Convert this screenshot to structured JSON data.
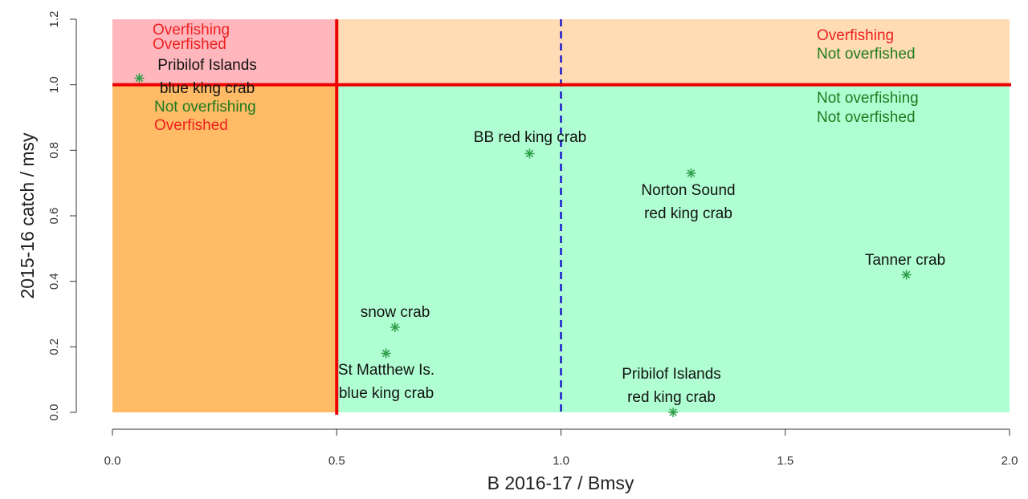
{
  "chart_data": {
    "type": "scatter",
    "xlabel": "B 2016-17  / Bmsy",
    "ylabel": "2015-16 catch / msy",
    "xlim": [
      0,
      2
    ],
    "ylim": [
      0,
      1.2
    ],
    "xticks": [
      {
        "value": 0,
        "label": "0.0"
      },
      0.5,
      {
        "value": 1,
        "label": "1.0"
      },
      1.5,
      {
        "value": 2,
        "label": "2.0"
      }
    ],
    "yticks": [
      {
        "value": 0,
        "label": "0.0"
      },
      0.2,
      0.4,
      0.6,
      0.8,
      {
        "value": 1,
        "label": "1.0"
      },
      1.2
    ],
    "x": [
      0.06,
      0.93,
      1.29,
      1.77,
      0.63,
      0.61,
      1.25
    ],
    "values": [
      1.02,
      0.79,
      0.73,
      0.42,
      0.26,
      0.18,
      0.0
    ],
    "labels": [
      [
        "Pribilof Islands",
        "blue king crab"
      ],
      [
        "BB red king crab"
      ],
      [
        "Norton Sound",
        "red king crab"
      ],
      [
        "Tanner crab"
      ],
      [
        "snow crab"
      ],
      [
        "St Matthew Is.",
        "blue king crab"
      ],
      [
        "Pribilof Islands",
        "red king crab"
      ]
    ],
    "color": "#2e9e4a",
    "region_colors": {
      "top_left": "#ffb7bd",
      "top_right": "#ffdcb4",
      "bottom_left": "#ffbb66",
      "bottom_right": "#b0ffd2"
    },
    "vlines": [
      {
        "value": 0.5,
        "color": "#ee0000",
        "style": "solid"
      },
      {
        "value": 1.0,
        "color": "#1a1acc",
        "style": "dashed"
      }
    ],
    "hlines": [
      {
        "value": 1.0,
        "color": "#ee0000",
        "style": "solid"
      }
    ],
    "annotations": [
      {
        "text": "Overfishing",
        "color": "#ee2020"
      },
      {
        "text": "Overfished",
        "color": "#ee2020"
      },
      {
        "text": "Not overfishing",
        "color": "#1e7a1e"
      },
      {
        "text": "Overfished",
        "color": "#ee2020"
      },
      {
        "text": "Overfishing",
        "color": "#ee2020"
      },
      {
        "text": "Not overfished",
        "color": "#1e7a1e"
      },
      {
        "text": "Not overfishing",
        "color": "#1e7a1e"
      },
      {
        "text": "Not overfished",
        "color": "#1e7a1e"
      }
    ]
  }
}
